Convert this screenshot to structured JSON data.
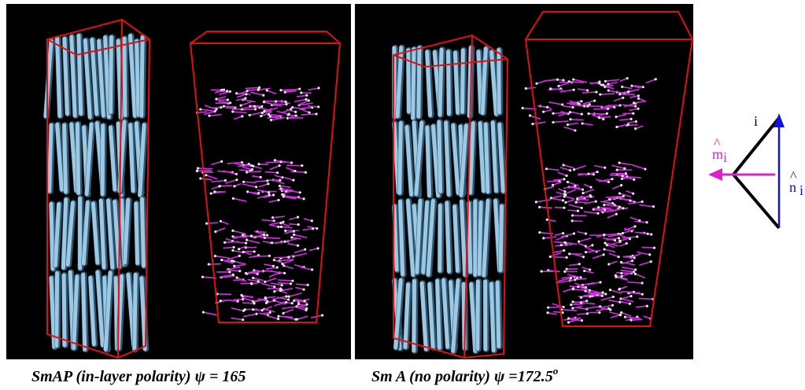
{
  "captions": [
    {
      "text": "SmAP (in-layer polarity) ψ = 165"
    },
    {
      "text": "Sm A (no polarity) ψ =172.5",
      "superscript": "o"
    }
  ],
  "diagram": {
    "vertex": "i",
    "m_label": "m",
    "m_hat": "^",
    "m_sub": "i",
    "n_label": "n",
    "n_hat": "^",
    "n_sub": "i"
  }
}
